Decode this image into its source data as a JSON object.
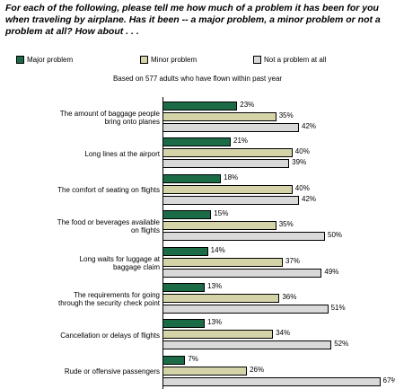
{
  "chart_data": {
    "type": "bar",
    "orientation": "horizontal",
    "title": "For each of the following, please tell me how much of a problem it has been for you when traveling by airplane. Has it been -- a major problem, a minor problem or not a problem at all? How about . . .",
    "subtitle": "Based on 577 adults who have flown within past year",
    "categories": [
      "The amount of baggage people bring onto planes",
      "Long lines at the airport",
      "The comfort of seating on flights",
      "The food or beverages available on flights",
      "Long waits for luggage at baggage claim",
      "The requirements for going through the security check point",
      "Cancellation or delays of flights",
      "Rude or offensive passengers"
    ],
    "series": [
      {
        "name": "Major problem",
        "color": "#1b6b46",
        "values": [
          23,
          21,
          18,
          15,
          14,
          13,
          13,
          7
        ],
        "value_labels": [
          "23%",
          "21%",
          "18%",
          "15%",
          "14%",
          "13%",
          "13%",
          "7%"
        ]
      },
      {
        "name": "Minor problem",
        "color": "#d5d4a9",
        "values": [
          35,
          40,
          40,
          35,
          37,
          36,
          34,
          26
        ],
        "value_labels": [
          "35%",
          "40%",
          "40%",
          "35%",
          "37%",
          "36%",
          "34%",
          "26%"
        ]
      },
      {
        "name": "Not a problem at all",
        "color": "#d9d9d9",
        "values": [
          42,
          39,
          42,
          50,
          49,
          51,
          52,
          67
        ],
        "value_labels": [
          "42%",
          "39%",
          "42%",
          "50%",
          "49%",
          "51%",
          "52%",
          "67%"
        ]
      }
    ]
  }
}
